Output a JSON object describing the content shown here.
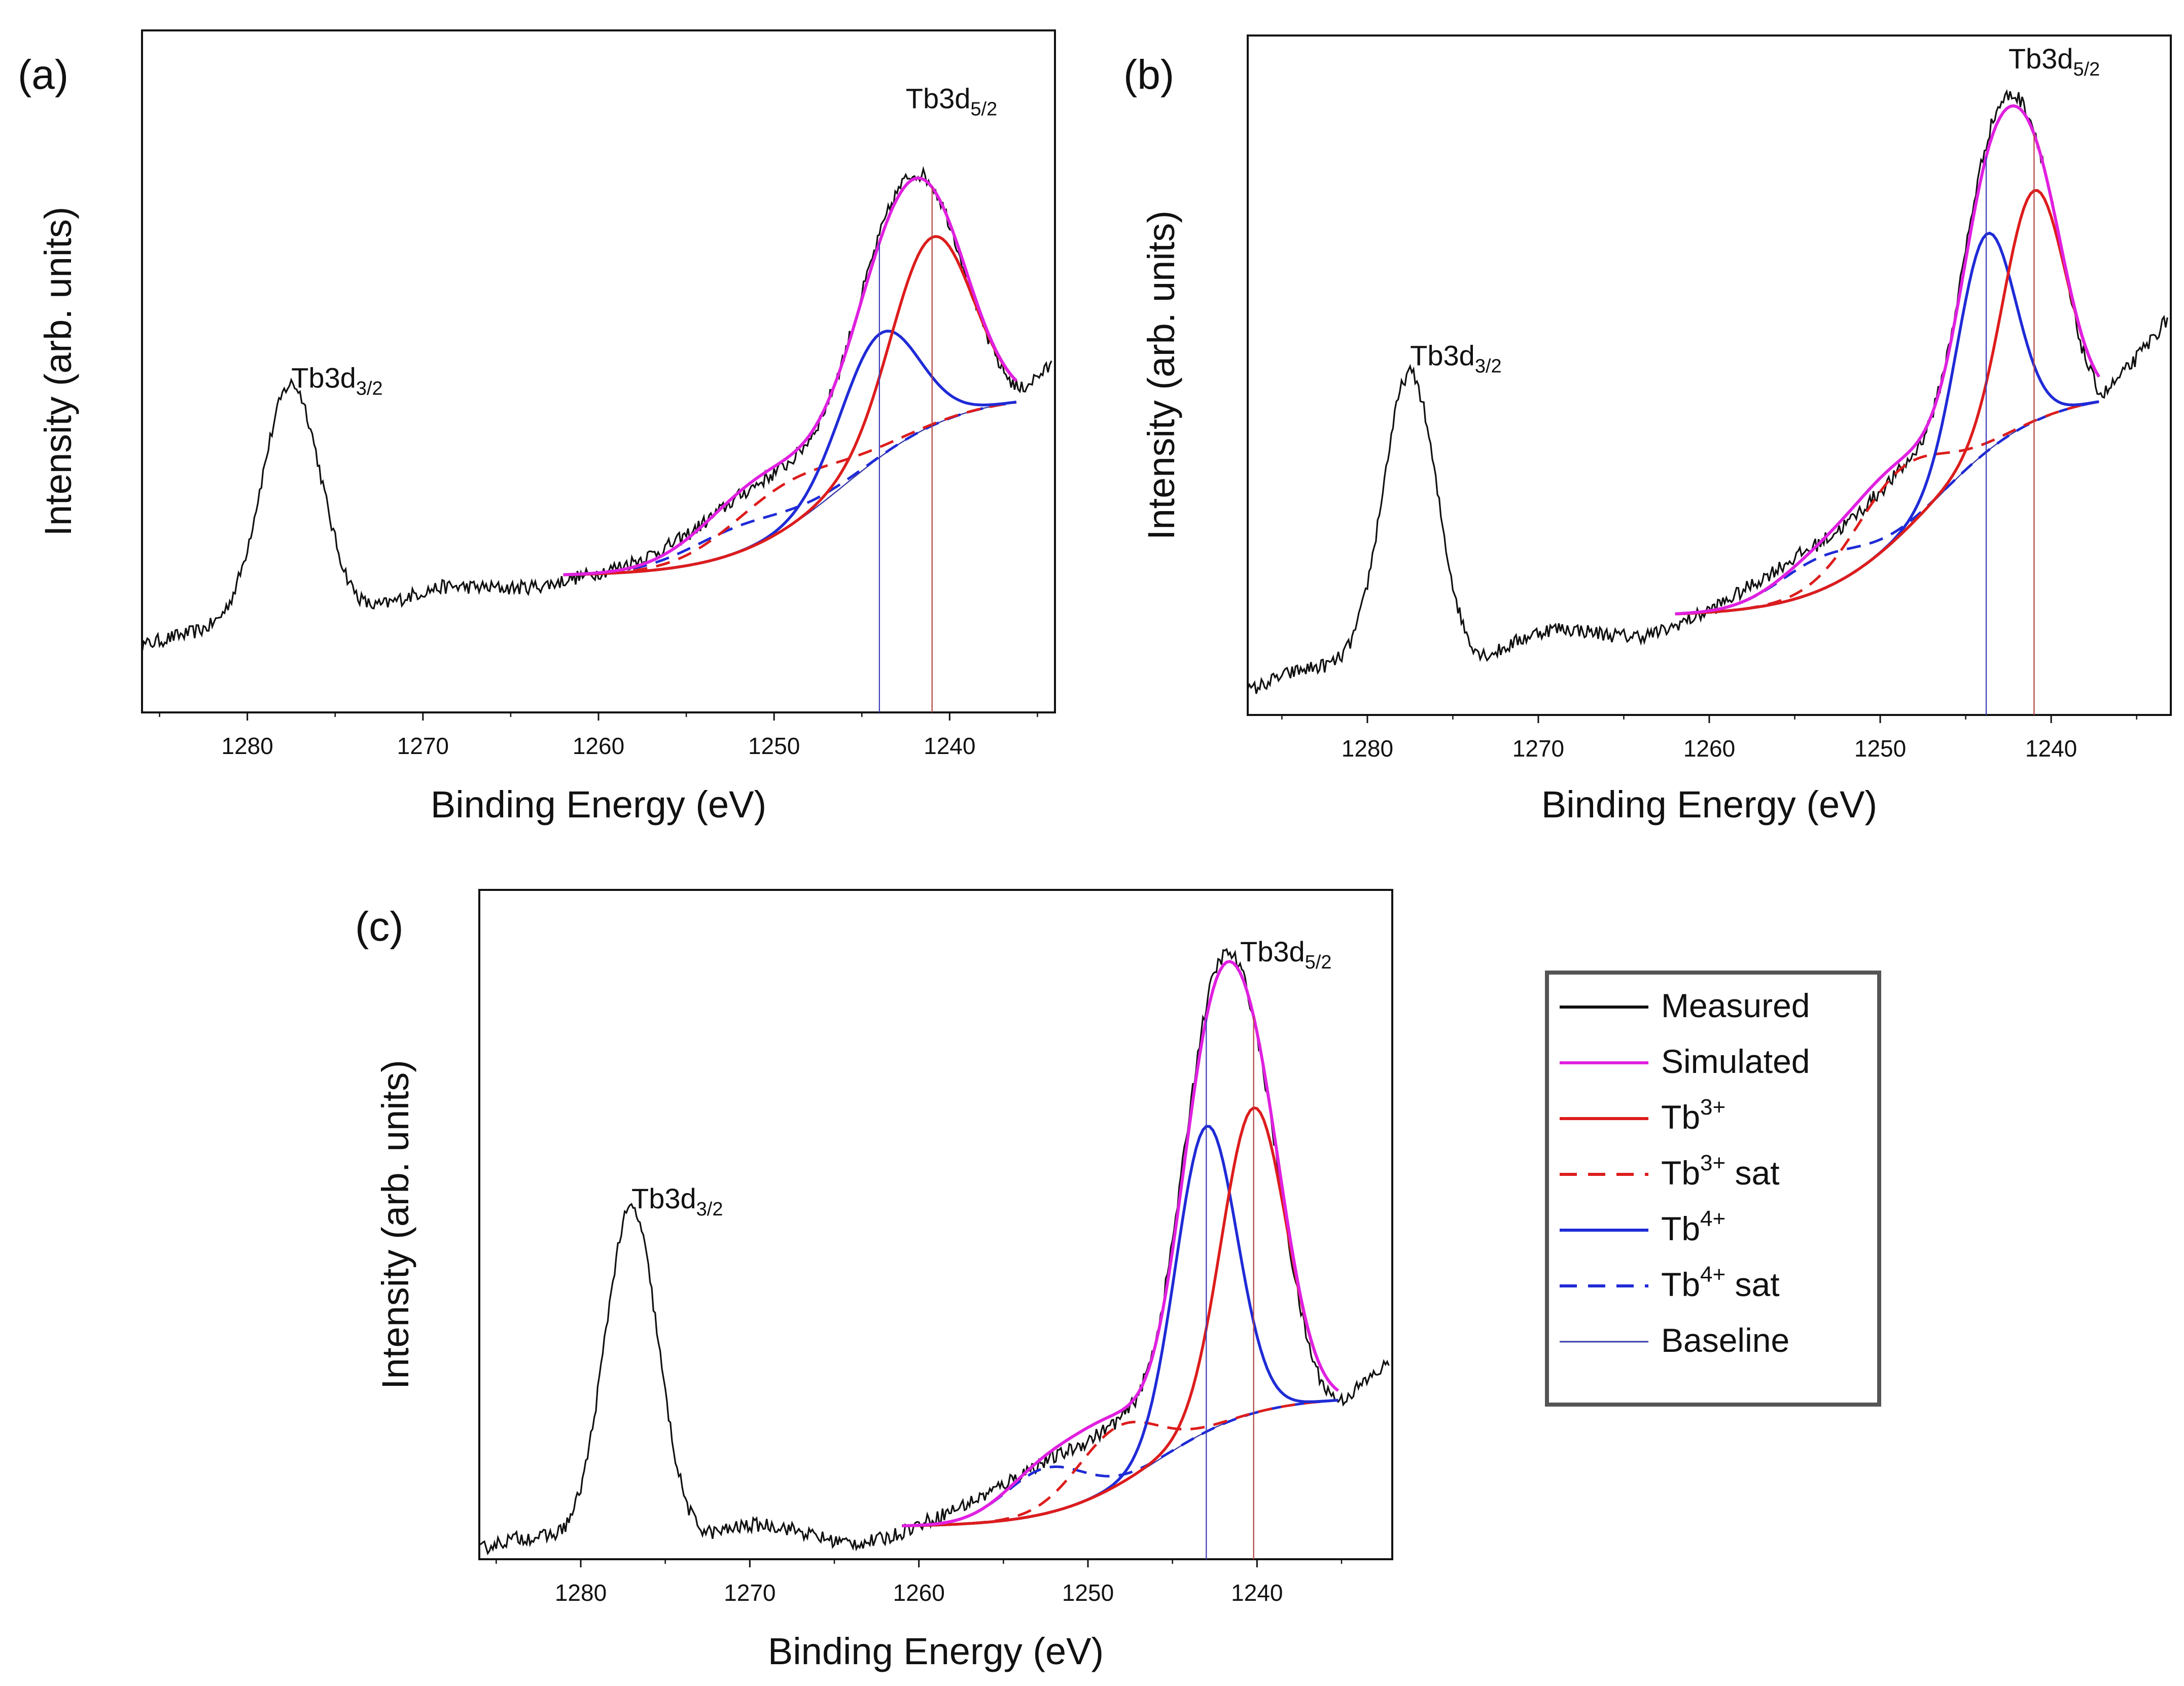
{
  "chart_data": [
    {
      "type": "line",
      "panel": "(a)",
      "title": "",
      "xlabel": "Binding Energy (eV)",
      "ylabel": "Intensity (arb. units)",
      "xlim": [
        1286,
        1234
      ],
      "ylim": [
        0.0,
        1.05
      ],
      "xticks": [
        1280,
        1270,
        1260,
        1250,
        1240
      ],
      "xtick_labels": [
        "1280",
        "1270",
        "1260",
        "1250",
        "1240"
      ],
      "grid": false,
      "annotations": [
        {
          "base": "Tb3d",
          "sub": "3/2",
          "x": 1277.5,
          "y": 0.5
        },
        {
          "base": "Tb3d",
          "sub": "5/2",
          "x": 1242.5,
          "y": 0.93
        }
      ],
      "bkg": {
        "low": 0.21,
        "high": 0.49,
        "x0": 1262,
        "x1": 1236,
        "center": 1246,
        "width": 3.2
      },
      "tb3": {
        "center": 1241.0,
        "amp": 0.29,
        "sigma": 2.3
      },
      "tb4": {
        "center": 1244.0,
        "amp": 0.19,
        "sigma": 2.2
      },
      "tb3sat": {
        "center": 1249.5,
        "amp": 0.07,
        "sigma": 3.2
      },
      "tb4sat": {
        "center": 1252.0,
        "amp": 0.04,
        "sigma": 3.0
      },
      "measured": {
        "p1": {
          "center": 1277.5,
          "amp": 0.38,
          "sigma": 1.7
        },
        "left": 0.1,
        "dip": 0.17,
        "right_end": 0.54,
        "slope_bump": 0.01
      }
    },
    {
      "type": "line",
      "panel": "(b)",
      "title": "",
      "xlabel": "Binding Energy (eV)",
      "ylabel": "Intensity (arb. units)",
      "xlim": [
        1287,
        1233
      ],
      "ylim": [
        0.0,
        1.03
      ],
      "xticks": [
        1280,
        1270,
        1260,
        1250,
        1240
      ],
      "xtick_labels": [
        "1280",
        "1270",
        "1260",
        "1250",
        "1240"
      ],
      "grid": false,
      "annotations": [
        {
          "base": "Tb3d",
          "sub": "3/2",
          "x": 1277.5,
          "y": 0.53
        },
        {
          "base": "Tb3d",
          "sub": "5/2",
          "x": 1242.5,
          "y": 0.98
        }
      ],
      "bkg": {
        "low": 0.15,
        "high": 0.49,
        "x0": 1262,
        "x1": 1237,
        "center": 1247,
        "width": 3.2
      },
      "tb3": {
        "center": 1241.0,
        "amp": 0.35,
        "sigma": 1.8
      },
      "tb4": {
        "center": 1243.8,
        "amp": 0.33,
        "sigma": 1.7
      },
      "tb3sat": {
        "center": 1249.0,
        "amp": 0.1,
        "sigma": 2.6
      },
      "tb4sat": {
        "center": 1253.5,
        "amp": 0.05,
        "sigma": 2.6
      },
      "measured": {
        "p1": {
          "center": 1277.5,
          "amp": 0.47,
          "sigma": 1.6
        },
        "left": 0.04,
        "dip": 0.09,
        "right_end": 0.6,
        "slope_bump": 0.02
      }
    },
    {
      "type": "line",
      "panel": "(c)",
      "title": "",
      "xlabel": "Binding Energy (eV)",
      "ylabel": "Intensity (arb. units)",
      "xlim": [
        1286,
        1232
      ],
      "ylim": [
        0.0,
        1.03
      ],
      "xticks": [
        1280,
        1270,
        1260,
        1250,
        1240
      ],
      "xtick_labels": [
        "1280",
        "1270",
        "1260",
        "1250",
        "1240"
      ],
      "grid": false,
      "annotations": [
        {
          "base": "Tb3d",
          "sub": "3/2",
          "x": 1277.0,
          "y": 0.54
        },
        {
          "base": "Tb3d",
          "sub": "5/2",
          "x": 1241.0,
          "y": 0.92
        }
      ],
      "bkg": {
        "low": 0.05,
        "high": 0.25,
        "x0": 1261,
        "x1": 1235,
        "center": 1246,
        "width": 3.0
      },
      "tb3": {
        "center": 1240.2,
        "amp": 0.47,
        "sigma": 1.9
      },
      "tb4": {
        "center": 1243.0,
        "amp": 0.47,
        "sigma": 1.8
      },
      "tb3sat": {
        "center": 1248.3,
        "amp": 0.09,
        "sigma": 2.4
      },
      "tb4sat": {
        "center": 1252.5,
        "amp": 0.07,
        "sigma": 2.4
      },
      "measured": {
        "p1": {
          "center": 1277.0,
          "amp": 0.54,
          "sigma": 1.6
        },
        "left": 0.01,
        "dip": 0.03,
        "right_end": 0.29,
        "slope_bump": 0.02
      }
    }
  ],
  "legend": {
    "placement": "bottom-right",
    "items": [
      {
        "key": "measured",
        "label": "Measured",
        "sup": "",
        "suffix": "",
        "color": "#111111",
        "dash": "none"
      },
      {
        "key": "simulated",
        "label": "Simulated",
        "sup": "",
        "suffix": "",
        "color": "#e020e0",
        "dash": "none"
      },
      {
        "key": "tb3",
        "label": "Tb",
        "sup": "3+",
        "suffix": "",
        "color": "#dd1c1c",
        "dash": "none"
      },
      {
        "key": "tb3sat",
        "label": "Tb",
        "sup": "3+",
        "suffix": " sat",
        "color": "#dd1c1c",
        "dash": "dash"
      },
      {
        "key": "tb4",
        "label": "Tb",
        "sup": "4+",
        "suffix": "",
        "color": "#1f2bd6",
        "dash": "none"
      },
      {
        "key": "tb4sat",
        "label": "Tb",
        "sup": "4+",
        "suffix": " sat",
        "color": "#1f2bd6",
        "dash": "dash"
      },
      {
        "key": "baseline",
        "label": "Baseline",
        "sup": "",
        "suffix": "",
        "color": "#3a3aa8",
        "dash": "thin"
      }
    ]
  }
}
